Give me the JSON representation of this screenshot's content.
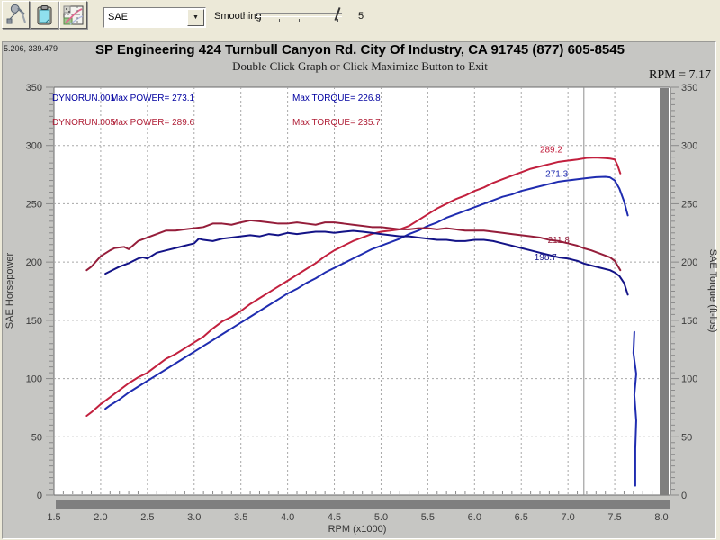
{
  "toolbar": {
    "buttons": [
      {
        "name": "setup-tools-button",
        "icon": "tools-icon"
      },
      {
        "name": "clipboard-button",
        "icon": "clipboard-icon"
      },
      {
        "name": "graph-options-button",
        "icon": "graph-icon"
      }
    ],
    "weather_correction": "SAE",
    "smoothing_label": "Smoothing",
    "smoothing_value": "5"
  },
  "header": {
    "coords_readout": "5.206, 339.479",
    "title": "SP Engineering 424 Turnbull Canyon Rd. City Of Industry, CA 91745 (877) 605-8545",
    "subtitle": "Double Click Graph or Click Maximize Button to Exit",
    "rpm_readout": "RPM = 7.17"
  },
  "legend": {
    "runs": [
      {
        "name": "DYNORUN.001",
        "power_label": "Max POWER= 273.1",
        "torque_label": "Max TORQUE= 226.8",
        "color": "#0000a0"
      },
      {
        "name": "DYNORUN.005",
        "power_label": "Max POWER= 289.6",
        "torque_label": "Max TORQUE= 235.7",
        "color": "#b02038"
      }
    ]
  },
  "chart_data": {
    "type": "line",
    "xlabel": "RPM (x1000)",
    "ylabel_left": "SAE Horsepower",
    "ylabel_right": "SAE Torque (ft-lbs)",
    "xlim": [
      1.5,
      8.0
    ],
    "ylim": [
      0,
      350
    ],
    "x_ticks": [
      1.5,
      2.0,
      2.5,
      3.0,
      3.5,
      4.0,
      4.5,
      5.0,
      5.5,
      6.0,
      6.5,
      7.0,
      7.5,
      8.0
    ],
    "y_ticks": [
      0,
      50,
      100,
      150,
      200,
      250,
      300,
      350
    ],
    "grid": "dashed",
    "cursor_rpm": 7.17,
    "colors": {
      "power_001": "#1f2cb0",
      "power_005": "#c2203e",
      "torque_001": "#131387",
      "torque_005": "#951d3a"
    },
    "annotations": [
      {
        "text": "289.2",
        "rpm": 6.82,
        "value": 294.0,
        "color": "#c2203e"
      },
      {
        "text": "271.3",
        "rpm": 6.88,
        "value": 273.0,
        "color": "#1f2cb0"
      },
      {
        "text": "211.8",
        "rpm": 6.9,
        "value": 216.5,
        "color": "#951d3a"
      },
      {
        "text": "198.7",
        "rpm": 6.76,
        "value": 201.5,
        "color": "#131387"
      }
    ],
    "series": [
      {
        "name": "DYNORUN.005 SAE Horsepower",
        "color": "#c2203e",
        "points": [
          [
            1.85,
            68
          ],
          [
            1.9,
            71
          ],
          [
            2.0,
            78
          ],
          [
            2.1,
            84
          ],
          [
            2.2,
            90
          ],
          [
            2.3,
            96
          ],
          [
            2.4,
            101
          ],
          [
            2.5,
            105
          ],
          [
            2.6,
            111
          ],
          [
            2.7,
            117
          ],
          [
            2.8,
            121
          ],
          [
            2.9,
            126
          ],
          [
            3.0,
            131
          ],
          [
            3.1,
            136
          ],
          [
            3.2,
            143
          ],
          [
            3.3,
            149
          ],
          [
            3.4,
            153
          ],
          [
            3.5,
            158
          ],
          [
            3.6,
            164
          ],
          [
            3.7,
            169
          ],
          [
            3.8,
            174
          ],
          [
            3.9,
            179
          ],
          [
            4.0,
            184
          ],
          [
            4.1,
            189
          ],
          [
            4.2,
            194
          ],
          [
            4.3,
            199
          ],
          [
            4.4,
            205
          ],
          [
            4.5,
            210
          ],
          [
            4.6,
            214
          ],
          [
            4.7,
            218
          ],
          [
            4.8,
            221
          ],
          [
            4.9,
            224
          ],
          [
            5.0,
            226
          ],
          [
            5.1,
            227
          ],
          [
            5.2,
            228
          ],
          [
            5.3,
            231
          ],
          [
            5.4,
            236
          ],
          [
            5.5,
            241
          ],
          [
            5.6,
            246
          ],
          [
            5.7,
            250
          ],
          [
            5.8,
            254
          ],
          [
            5.9,
            257
          ],
          [
            6.0,
            261
          ],
          [
            6.1,
            264
          ],
          [
            6.2,
            268
          ],
          [
            6.3,
            271
          ],
          [
            6.4,
            274
          ],
          [
            6.5,
            277
          ],
          [
            6.6,
            280
          ],
          [
            6.7,
            282
          ],
          [
            6.8,
            284
          ],
          [
            6.9,
            286
          ],
          [
            7.0,
            287
          ],
          [
            7.1,
            288
          ],
          [
            7.2,
            289.3
          ],
          [
            7.3,
            289.6
          ],
          [
            7.4,
            289.2
          ],
          [
            7.45,
            288.8
          ],
          [
            7.5,
            288
          ],
          [
            7.53,
            283
          ],
          [
            7.56,
            276
          ]
        ]
      },
      {
        "name": "DYNORUN.001 SAE Horsepower",
        "color": "#1f2cb0",
        "points": [
          [
            2.05,
            74
          ],
          [
            2.1,
            77
          ],
          [
            2.2,
            82
          ],
          [
            2.3,
            88
          ],
          [
            2.4,
            93
          ],
          [
            2.5,
            98
          ],
          [
            2.6,
            103
          ],
          [
            2.7,
            108
          ],
          [
            2.8,
            113
          ],
          [
            2.9,
            118
          ],
          [
            3.0,
            123
          ],
          [
            3.1,
            128
          ],
          [
            3.2,
            133
          ],
          [
            3.3,
            138
          ],
          [
            3.4,
            143
          ],
          [
            3.5,
            148
          ],
          [
            3.6,
            153
          ],
          [
            3.7,
            158
          ],
          [
            3.8,
            163
          ],
          [
            3.9,
            168
          ],
          [
            4.0,
            173
          ],
          [
            4.1,
            177
          ],
          [
            4.2,
            182
          ],
          [
            4.3,
            186
          ],
          [
            4.4,
            191
          ],
          [
            4.5,
            195
          ],
          [
            4.6,
            199
          ],
          [
            4.7,
            203
          ],
          [
            4.8,
            207
          ],
          [
            4.9,
            211
          ],
          [
            5.0,
            214
          ],
          [
            5.1,
            217
          ],
          [
            5.2,
            220
          ],
          [
            5.3,
            224
          ],
          [
            5.4,
            227
          ],
          [
            5.5,
            231
          ],
          [
            5.6,
            234
          ],
          [
            5.7,
            238
          ],
          [
            5.8,
            241
          ],
          [
            5.9,
            244
          ],
          [
            6.0,
            247
          ],
          [
            6.1,
            250
          ],
          [
            6.2,
            253
          ],
          [
            6.3,
            256
          ],
          [
            6.4,
            258
          ],
          [
            6.5,
            261
          ],
          [
            6.6,
            263
          ],
          [
            6.7,
            265
          ],
          [
            6.8,
            267
          ],
          [
            6.9,
            269
          ],
          [
            7.0,
            270
          ],
          [
            7.1,
            271
          ],
          [
            7.2,
            272
          ],
          [
            7.3,
            272.8
          ],
          [
            7.4,
            273.1
          ],
          [
            7.45,
            272.6
          ],
          [
            7.5,
            270
          ],
          [
            7.55,
            263
          ],
          [
            7.6,
            252
          ],
          [
            7.64,
            240
          ]
        ]
      },
      {
        "name": "DYNORUN.005 SAE Torque",
        "color": "#951d3a",
        "points": [
          [
            1.85,
            193
          ],
          [
            1.9,
            196
          ],
          [
            2.0,
            205
          ],
          [
            2.1,
            210
          ],
          [
            2.15,
            212
          ],
          [
            2.25,
            213
          ],
          [
            2.3,
            211
          ],
          [
            2.4,
            218
          ],
          [
            2.5,
            221
          ],
          [
            2.6,
            224
          ],
          [
            2.7,
            227
          ],
          [
            2.8,
            227
          ],
          [
            2.9,
            228
          ],
          [
            3.0,
            229
          ],
          [
            3.1,
            230
          ],
          [
            3.2,
            233
          ],
          [
            3.3,
            233
          ],
          [
            3.4,
            232
          ],
          [
            3.5,
            234
          ],
          [
            3.6,
            235.7
          ],
          [
            3.7,
            235
          ],
          [
            3.8,
            234
          ],
          [
            3.9,
            233
          ],
          [
            4.0,
            233
          ],
          [
            4.1,
            234
          ],
          [
            4.2,
            233
          ],
          [
            4.3,
            232
          ],
          [
            4.4,
            234
          ],
          [
            4.5,
            234
          ],
          [
            4.6,
            233
          ],
          [
            4.7,
            232
          ],
          [
            4.8,
            231
          ],
          [
            4.9,
            230
          ],
          [
            5.0,
            230
          ],
          [
            5.1,
            229
          ],
          [
            5.2,
            228
          ],
          [
            5.3,
            228
          ],
          [
            5.4,
            229
          ],
          [
            5.5,
            229
          ],
          [
            5.6,
            228
          ],
          [
            5.7,
            229
          ],
          [
            5.8,
            228
          ],
          [
            5.9,
            227
          ],
          [
            6.0,
            227
          ],
          [
            6.1,
            227
          ],
          [
            6.2,
            226
          ],
          [
            6.3,
            225
          ],
          [
            6.4,
            224
          ],
          [
            6.5,
            223
          ],
          [
            6.6,
            222
          ],
          [
            6.7,
            221
          ],
          [
            6.8,
            219
          ],
          [
            6.9,
            218
          ],
          [
            7.0,
            216
          ],
          [
            7.1,
            214
          ],
          [
            7.17,
            211.8
          ],
          [
            7.25,
            210
          ],
          [
            7.35,
            207
          ],
          [
            7.45,
            204
          ],
          [
            7.5,
            201
          ],
          [
            7.53,
            197
          ],
          [
            7.56,
            193
          ]
        ]
      },
      {
        "name": "DYNORUN.001 SAE Torque",
        "color": "#131387",
        "points": [
          [
            2.05,
            190
          ],
          [
            2.1,
            192
          ],
          [
            2.2,
            196
          ],
          [
            2.3,
            199
          ],
          [
            2.4,
            203
          ],
          [
            2.45,
            204
          ],
          [
            2.5,
            203
          ],
          [
            2.6,
            208
          ],
          [
            2.7,
            210
          ],
          [
            2.8,
            212
          ],
          [
            2.9,
            214
          ],
          [
            3.0,
            216
          ],
          [
            3.05,
            220
          ],
          [
            3.1,
            219
          ],
          [
            3.2,
            218
          ],
          [
            3.3,
            220
          ],
          [
            3.4,
            221
          ],
          [
            3.5,
            222
          ],
          [
            3.6,
            223
          ],
          [
            3.7,
            222
          ],
          [
            3.8,
            224
          ],
          [
            3.9,
            223
          ],
          [
            4.0,
            225
          ],
          [
            4.1,
            224
          ],
          [
            4.2,
            225
          ],
          [
            4.3,
            226
          ],
          [
            4.4,
            226
          ],
          [
            4.5,
            225
          ],
          [
            4.6,
            226
          ],
          [
            4.7,
            226.8
          ],
          [
            4.8,
            226
          ],
          [
            4.9,
            225
          ],
          [
            5.0,
            224
          ],
          [
            5.1,
            223
          ],
          [
            5.2,
            222
          ],
          [
            5.3,
            222
          ],
          [
            5.4,
            221
          ],
          [
            5.5,
            220
          ],
          [
            5.6,
            219
          ],
          [
            5.7,
            219
          ],
          [
            5.8,
            218
          ],
          [
            5.9,
            218
          ],
          [
            6.0,
            219
          ],
          [
            6.1,
            219
          ],
          [
            6.2,
            218
          ],
          [
            6.3,
            216
          ],
          [
            6.4,
            214
          ],
          [
            6.5,
            212
          ],
          [
            6.6,
            210
          ],
          [
            6.7,
            208
          ],
          [
            6.8,
            206
          ],
          [
            6.9,
            204
          ],
          [
            7.0,
            203
          ],
          [
            7.1,
            201
          ],
          [
            7.17,
            198.7
          ],
          [
            7.25,
            197
          ],
          [
            7.35,
            195
          ],
          [
            7.45,
            193
          ],
          [
            7.5,
            191
          ],
          [
            7.55,
            188
          ],
          [
            7.6,
            182
          ],
          [
            7.64,
            172
          ]
        ]
      },
      {
        "name": "DYNORUN.001 rev-cut tail",
        "color": "#1f2cb0",
        "points": [
          [
            7.71,
            140
          ],
          [
            7.7,
            122
          ],
          [
            7.73,
            104
          ],
          [
            7.71,
            86
          ],
          [
            7.73,
            64
          ],
          [
            7.72,
            40
          ],
          [
            7.72,
            8
          ]
        ]
      }
    ]
  }
}
